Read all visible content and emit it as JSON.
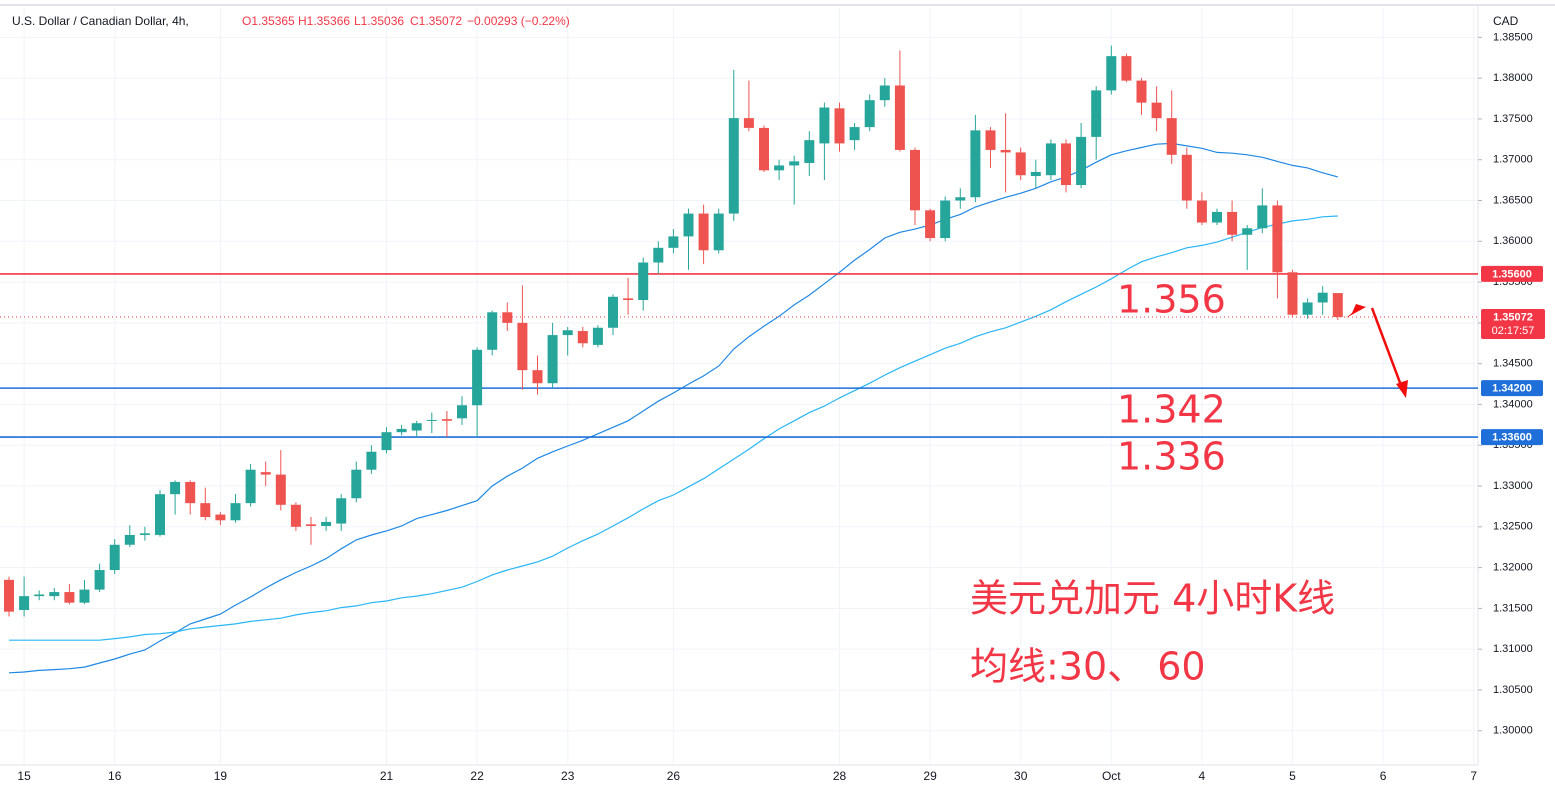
{
  "chart_data": {
    "type": "candlestick",
    "title": "U.S. Dollar / Canadian Dollar, 4h,",
    "ohlc_header": [
      "O1.35365",
      "H1.35366",
      "L1.35036",
      "C1.35072",
      "−0.00293 (−0.22%)"
    ],
    "currency": "CAD",
    "up_color": "#26a69a",
    "down_color": "#ef5350",
    "grid": true,
    "categories": [
      null,
      "15",
      null,
      null,
      null,
      null,
      null,
      "16",
      null,
      null,
      null,
      null,
      null,
      null,
      "19",
      null,
      null,
      null,
      null,
      null,
      null,
      null,
      null,
      null,
      null,
      "21",
      null,
      null,
      null,
      null,
      null,
      "22",
      null,
      null,
      null,
      null,
      null,
      "23",
      null,
      null,
      null,
      null,
      null,
      null,
      "26",
      null,
      null,
      null,
      null,
      null,
      null,
      null,
      null,
      null,
      null,
      "28",
      null,
      null,
      null,
      null,
      null,
      "29",
      null,
      null,
      null,
      null,
      null,
      "30",
      null,
      null,
      null,
      null,
      null,
      "Oct",
      null,
      null,
      null,
      null,
      null,
      "4",
      null,
      null,
      null,
      null,
      null,
      "5",
      null,
      null,
      null,
      null,
      null,
      "6",
      null,
      null,
      null,
      null,
      null,
      "7"
    ],
    "open": [
      1.3185,
      1.3148,
      1.3165,
      1.3165,
      1.317,
      1.3157,
      1.3173,
      1.3197,
      1.3228,
      1.324,
      1.324,
      1.329,
      1.3305,
      1.3279,
      1.3265,
      1.3258,
      1.3279,
      1.3317,
      1.3314,
      1.3277,
      1.3253,
      1.3251,
      1.3254,
      1.3285,
      1.332,
      1.3344,
      1.3366,
      1.3368,
      1.338,
      1.3382,
      1.3383,
      1.3399,
      1.3467,
      1.3513,
      1.35,
      1.3442,
      1.3426,
      1.3485,
      1.349,
      1.3473,
      1.3494,
      1.353,
      1.3528,
      1.3574,
      1.3592,
      1.3606,
      1.3634,
      1.3589,
      1.3634,
      1.3751,
      1.3739,
      1.3687,
      1.3693,
      1.3696,
      1.372,
      1.3763,
      1.3724,
      1.374,
      1.3773,
      1.3791,
      1.3712,
      1.3638,
      1.3604,
      1.365,
      1.3654,
      1.3736,
      1.3712,
      1.3709,
      1.368,
      1.3681,
      1.372,
      1.3669,
      1.3728,
      1.3785,
      1.3827,
      1.3797,
      1.377,
      1.3751,
      1.3706,
      1.365,
      1.3623,
      1.3636,
      1.3608,
      1.3616,
      1.3644,
      1.3562,
      1.351,
      1.3525,
      1.35365,
      null,
      null,
      null,
      null,
      null,
      null,
      null,
      null,
      null
    ],
    "high": [
      1.3189,
      1.3189,
      1.3172,
      1.3175,
      1.318,
      1.3185,
      1.3205,
      1.3235,
      1.3252,
      1.325,
      1.3295,
      1.3307,
      1.3307,
      1.3298,
      1.3268,
      1.329,
      1.3327,
      1.333,
      1.3344,
      1.328,
      1.3262,
      1.3262,
      1.329,
      1.333,
      1.335,
      1.3372,
      1.3375,
      1.338,
      1.339,
      1.3392,
      1.341,
      1.347,
      1.3515,
      1.3525,
      1.3546,
      1.346,
      1.35,
      1.3495,
      1.3495,
      1.3497,
      1.3535,
      1.3555,
      1.358,
      1.36,
      1.3615,
      1.364,
      1.3645,
      1.364,
      1.381,
      1.3797,
      1.3742,
      1.37,
      1.3705,
      1.3735,
      1.377,
      1.377,
      1.3745,
      1.378,
      1.38,
      1.3834,
      1.3715,
      1.364,
      1.3655,
      1.3665,
      1.3755,
      1.374,
      1.3757,
      1.3715,
      1.37,
      1.3725,
      1.3725,
      1.3745,
      1.379,
      1.384,
      1.383,
      1.38,
      1.379,
      1.3785,
      1.3715,
      1.366,
      1.364,
      1.365,
      1.362,
      1.3665,
      1.365,
      1.3565,
      1.353,
      1.3545,
      1.35366,
      null,
      null,
      null,
      null,
      null,
      null,
      null,
      null,
      null
    ],
    "low": [
      1.314,
      1.314,
      1.316,
      1.316,
      1.3155,
      1.3155,
      1.317,
      1.3192,
      1.3225,
      1.3233,
      1.3238,
      1.3265,
      1.3265,
      1.3258,
      1.3252,
      1.3255,
      1.3275,
      1.33,
      1.327,
      1.3245,
      1.3228,
      1.3245,
      1.3245,
      1.328,
      1.3315,
      1.334,
      1.3362,
      1.336,
      1.3365,
      1.336,
      1.3375,
      1.336,
      1.346,
      1.349,
      1.3418,
      1.3412,
      1.342,
      1.346,
      1.347,
      1.347,
      1.3485,
      1.351,
      1.3515,
      1.356,
      1.3585,
      1.3565,
      1.3572,
      1.3585,
      1.3625,
      1.3735,
      1.3685,
      1.3675,
      1.3645,
      1.368,
      1.3675,
      1.371,
      1.3712,
      1.3735,
      1.3765,
      1.371,
      1.362,
      1.36,
      1.36,
      1.364,
      1.3648,
      1.369,
      1.366,
      1.3675,
      1.3665,
      1.3675,
      1.366,
      1.3665,
      1.37,
      1.378,
      1.3795,
      1.3755,
      1.3735,
      1.3695,
      1.364,
      1.362,
      1.362,
      1.36,
      1.3565,
      1.361,
      1.353,
      1.3508,
      1.3505,
      1.351,
      1.35036,
      null,
      null,
      null,
      null,
      null,
      null,
      null,
      null,
      null
    ],
    "close": [
      1.3146,
      1.3165,
      1.3167,
      1.317,
      1.3157,
      1.3173,
      1.3197,
      1.3228,
      1.324,
      1.3242,
      1.329,
      1.3305,
      1.3279,
      1.3262,
      1.3258,
      1.3279,
      1.332,
      1.3314,
      1.3277,
      1.325,
      1.3251,
      1.3256,
      1.3285,
      1.332,
      1.3342,
      1.3366,
      1.337,
      1.3377,
      1.3381,
      1.338,
      1.3399,
      1.3467,
      1.3513,
      1.35,
      1.3442,
      1.3426,
      1.3485,
      1.3491,
      1.3475,
      1.3494,
      1.3532,
      1.3528,
      1.3574,
      1.3592,
      1.3606,
      1.3634,
      1.3589,
      1.3634,
      1.3751,
      1.3739,
      1.3687,
      1.3693,
      1.3698,
      1.3724,
      1.3764,
      1.372,
      1.374,
      1.3773,
      1.3791,
      1.3712,
      1.3638,
      1.3604,
      1.365,
      1.3654,
      1.3736,
      1.3712,
      1.3709,
      1.3681,
      1.3685,
      1.372,
      1.3669,
      1.3728,
      1.3785,
      1.3827,
      1.3797,
      1.377,
      1.3751,
      1.3706,
      1.365,
      1.3623,
      1.3636,
      1.3608,
      1.3616,
      1.3644,
      1.3562,
      1.351,
      1.3525,
      1.3537,
      1.35072,
      null,
      null,
      null,
      null,
      null,
      null,
      null,
      null,
      null
    ],
    "moving_averages": [
      {
        "color": "#1e88e5",
        "values": [
          1.3071,
          1.3072,
          1.3074,
          1.3075,
          1.3076,
          1.3078,
          1.3083,
          1.3088,
          1.3094,
          1.3099,
          1.311,
          1.312,
          1.3131,
          1.3137,
          1.3143,
          1.3154,
          1.3164,
          1.3175,
          1.3185,
          1.3194,
          1.3202,
          1.3211,
          1.3223,
          1.3234,
          1.324,
          1.3245,
          1.3251,
          1.326,
          1.3265,
          1.327,
          1.3276,
          1.3282,
          1.33,
          1.3312,
          1.3322,
          1.3334,
          1.3342,
          1.3349,
          1.3356,
          1.3364,
          1.3372,
          1.338,
          1.3392,
          1.3404,
          1.3414,
          1.3425,
          1.3435,
          1.3447,
          1.3468,
          1.3483,
          1.3496,
          1.3508,
          1.3522,
          1.3534,
          1.3548,
          1.3562,
          1.3577,
          1.359,
          1.3604,
          1.3611,
          1.3615,
          1.362,
          1.3627,
          1.3633,
          1.3642,
          1.3648,
          1.3654,
          1.3659,
          1.3665,
          1.3673,
          1.3679,
          1.3687,
          1.3697,
          1.3706,
          1.3711,
          1.3715,
          1.3719,
          1.372,
          1.3717,
          1.3714,
          1.3709,
          1.3708,
          1.3706,
          1.3703,
          1.3698,
          1.3693,
          1.369,
          1.3684,
          1.3679,
          null,
          null,
          null,
          null,
          null,
          null,
          null,
          null,
          null
        ]
      },
      {
        "color": "#29b6f6",
        "values": [
          1.3111,
          1.3111,
          1.3111,
          1.3111,
          1.3111,
          1.3111,
          1.3111,
          1.3113,
          1.3115,
          1.3118,
          1.3119,
          1.3121,
          1.3125,
          1.3127,
          1.3129,
          1.3131,
          1.3134,
          1.3136,
          1.3138,
          1.3142,
          1.3145,
          1.3147,
          1.3151,
          1.3153,
          1.3157,
          1.3159,
          1.3163,
          1.3165,
          1.3168,
          1.3172,
          1.3176,
          1.3183,
          1.3191,
          1.3197,
          1.3202,
          1.3207,
          1.3214,
          1.3224,
          1.3233,
          1.3241,
          1.3251,
          1.3261,
          1.3272,
          1.3282,
          1.3289,
          1.3299,
          1.3309,
          1.3321,
          1.3333,
          1.3345,
          1.3358,
          1.337,
          1.338,
          1.339,
          1.3398,
          1.3408,
          1.3417,
          1.3426,
          1.3436,
          1.3445,
          1.3453,
          1.3461,
          1.3469,
          1.3475,
          1.3483,
          1.3489,
          1.3494,
          1.3501,
          1.3508,
          1.3516,
          1.3526,
          1.3535,
          1.3544,
          1.3554,
          1.3565,
          1.3575,
          1.3581,
          1.3586,
          1.3592,
          1.3595,
          1.3599,
          1.3605,
          1.3611,
          1.3617,
          1.3621,
          1.3625,
          1.3627,
          1.363,
          1.3631,
          null,
          null,
          null,
          null,
          null,
          null,
          null,
          null,
          null
        ]
      }
    ],
    "levels": [
      {
        "value": 1.356,
        "label": "1.35600",
        "color": "#f23645"
      },
      {
        "value": 1.342,
        "label": "1.34200",
        "color": "#1e6fd9"
      },
      {
        "value": 1.336,
        "label": "1.33600",
        "color": "#1e6fd9"
      }
    ],
    "last_price": {
      "value": 1.35072,
      "label": "1.35072",
      "countdown": "02:17:57",
      "color": "#f23645"
    },
    "ylim": [
      1.2958,
      1.3886
    ],
    "yticks": [
      {
        "value": 1.3,
        "label": "1.30000"
      },
      {
        "value": 1.305,
        "label": "1.30500"
      },
      {
        "value": 1.31,
        "label": "1.31000"
      },
      {
        "value": 1.315,
        "label": "1.31500"
      },
      {
        "value": 1.32,
        "label": "1.32000"
      },
      {
        "value": 1.325,
        "label": "1.32500"
      },
      {
        "value": 1.33,
        "label": "1.33000"
      },
      {
        "value": 1.335,
        "label": "1.33500"
      },
      {
        "value": 1.34,
        "label": "1.34000"
      },
      {
        "value": 1.345,
        "label": "1.34500"
      },
      {
        "value": 1.35,
        "label": "1.35000"
      },
      {
        "value": 1.355,
        "label": "1.35500"
      },
      {
        "value": 1.36,
        "label": "1.36000"
      },
      {
        "value": 1.365,
        "label": "1.36500"
      },
      {
        "value": 1.37,
        "label": "1.37000"
      },
      {
        "value": 1.375,
        "label": "1.37500"
      },
      {
        "value": 1.38,
        "label": "1.38000"
      },
      {
        "value": 1.385,
        "label": "1.38500"
      }
    ],
    "annotations": [
      "1.356",
      "1.342",
      "1.336",
      "美元兑加元 4小时K线",
      "均线:30、 60"
    ]
  }
}
